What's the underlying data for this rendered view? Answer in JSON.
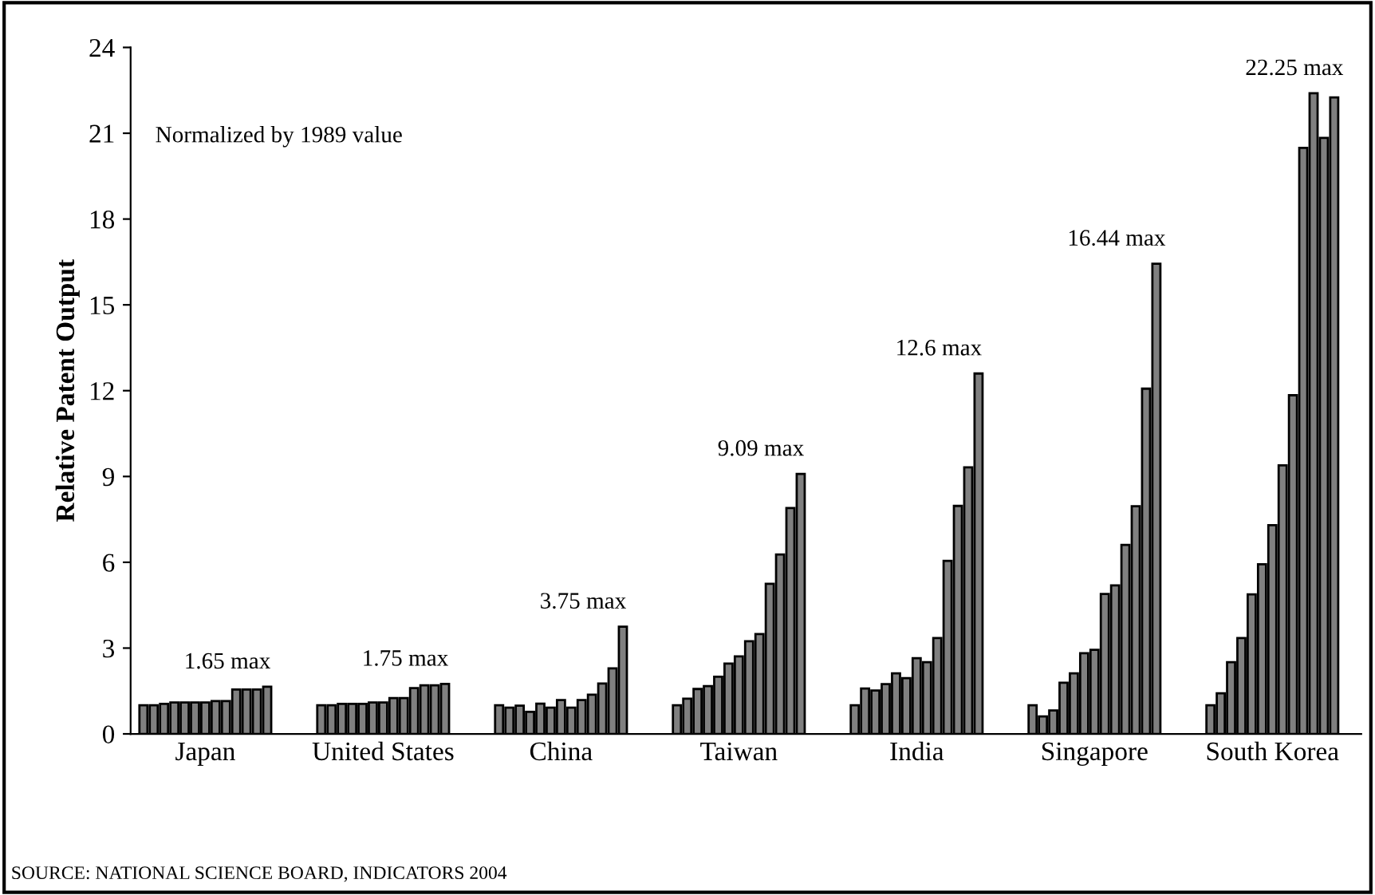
{
  "chart_data": {
    "type": "bar",
    "ylabel": "Relative Patent Output",
    "categories": [
      "Japan",
      "United States",
      "China",
      "Taiwan",
      "India",
      "Singapore",
      "South Korea"
    ],
    "series": [
      {
        "color": "#808080",
        "values": [
          1,
          1,
          1,
          1,
          1,
          1,
          1
        ]
      },
      {
        "color": "#808080",
        "values": [
          1,
          1,
          0.92,
          1.23,
          1.59,
          0.61,
          1.42
        ]
      },
      {
        "color": "#808080",
        "values": [
          1.05,
          1.05,
          0.99,
          1.57,
          1.52,
          0.82,
          2.51
        ]
      },
      {
        "color": "#808080",
        "values": [
          1.1,
          1.05,
          0.77,
          1.67,
          1.74,
          1.79,
          3.35
        ]
      },
      {
        "color": "#808080",
        "values": [
          1.1,
          1.05,
          1.06,
          2.0,
          2.12,
          2.12,
          4.88
        ]
      },
      {
        "color": "#808080",
        "values": [
          1.1,
          1.1,
          0.92,
          2.46,
          1.95,
          2.82,
          5.93
        ]
      },
      {
        "color": "#808080",
        "values": [
          1.1,
          1.1,
          1.18,
          2.71,
          2.65,
          2.94,
          7.3
        ]
      },
      {
        "color": "#808080",
        "values": [
          1.15,
          1.25,
          0.92,
          3.24,
          2.51,
          4.89,
          9.39
        ]
      },
      {
        "color": "#808080",
        "values": [
          1.15,
          1.25,
          1.18,
          3.49,
          3.35,
          5.19,
          11.84
        ]
      },
      {
        "color": "#808080",
        "values": [
          1.55,
          1.6,
          1.37,
          5.25,
          6.05,
          6.61,
          20.49
        ]
      },
      {
        "color": "#808080",
        "values": [
          1.55,
          1.7,
          1.76,
          6.27,
          7.97,
          7.96,
          22.4
        ]
      },
      {
        "color": "#808080",
        "values": [
          1.55,
          1.7,
          2.29,
          7.9,
          9.32,
          12.07,
          20.84
        ]
      },
      {
        "color": "#808080",
        "values": [
          1.65,
          1.75,
          3.75,
          9.09,
          12.6,
          16.44,
          22.25
        ]
      }
    ],
    "ylim": [
      0,
      24
    ],
    "yticks": [
      0,
      3,
      6,
      9,
      12,
      15,
      18,
      21,
      24
    ],
    "grid": false,
    "legend": false,
    "annotations": [
      "1.65 max",
      "1.75 max",
      "3.75 max",
      "9.09 max",
      "12.6 max",
      "16.44 max",
      "22.25 max",
      "Normalized by 1989 value",
      "SOURCE: NATIONAL SCIENCE BOARD, INDICATORS 2004"
    ]
  }
}
